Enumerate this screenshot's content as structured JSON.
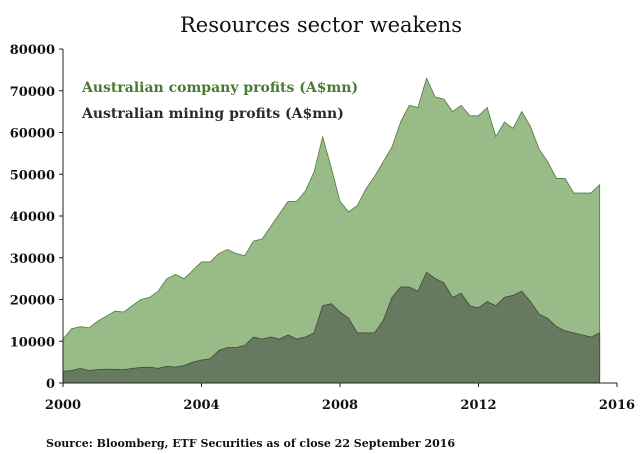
{
  "chart_data": {
    "type": "area",
    "title": "Resources sector weakens",
    "source": "Source: Bloomberg, ETF Securities as of close 22 September 2016",
    "xlabel": "",
    "ylabel": "",
    "xlim": [
      2000,
      2016
    ],
    "ylim": [
      0,
      80000
    ],
    "x_ticks": [
      2000,
      2004,
      2008,
      2012,
      2016
    ],
    "y_ticks": [
      0,
      10000,
      20000,
      30000,
      40000,
      50000,
      60000,
      70000,
      80000
    ],
    "grid": false,
    "legend_placement": "top-left",
    "x": [
      2000.0,
      2000.25,
      2000.5,
      2000.75,
      2001.0,
      2001.25,
      2001.5,
      2001.75,
      2002.0,
      2002.25,
      2002.5,
      2002.75,
      2003.0,
      2003.25,
      2003.5,
      2003.75,
      2004.0,
      2004.25,
      2004.5,
      2004.75,
      2005.0,
      2005.25,
      2005.5,
      2005.75,
      2006.0,
      2006.25,
      2006.5,
      2006.75,
      2007.0,
      2007.25,
      2007.5,
      2007.75,
      2008.0,
      2008.25,
      2008.5,
      2008.75,
      2009.0,
      2009.25,
      2009.5,
      2009.75,
      2010.0,
      2010.25,
      2010.5,
      2010.75,
      2011.0,
      2011.25,
      2011.5,
      2011.75,
      2012.0,
      2012.25,
      2012.5,
      2012.75,
      2013.0,
      2013.25,
      2013.5,
      2013.75,
      2014.0,
      2014.25,
      2014.5,
      2014.75,
      2015.0,
      2015.25,
      2015.5
    ],
    "series": [
      {
        "name": "Australian company profits (A$mn)",
        "color": "#98bb88",
        "text_color": "#4a7a32",
        "values": [
          10500,
          13000,
          13500,
          13200,
          14800,
          16000,
          17200,
          17000,
          18500,
          20000,
          20500,
          22000,
          25000,
          26000,
          25000,
          27000,
          29000,
          29000,
          31000,
          32000,
          31000,
          30500,
          34000,
          34500,
          37500,
          40500,
          43500,
          43500,
          46000,
          50500,
          59000,
          51500,
          43500,
          41000,
          42500,
          46500,
          49500,
          53000,
          56500,
          62500,
          66500,
          66000,
          73000,
          68500,
          68000,
          65000,
          66500,
          64000,
          64000,
          66000,
          59000,
          62500,
          61000,
          65000,
          61500,
          56000,
          53000,
          49000,
          49000,
          45500,
          45500,
          45500,
          47500
        ]
      },
      {
        "name": "Australian mining profits (A$mn)",
        "color": "#677a60",
        "text_color": "#2b2b2b",
        "values": [
          2800,
          3000,
          3500,
          3000,
          3200,
          3300,
          3300,
          3200,
          3500,
          3700,
          3800,
          3500,
          4000,
          3800,
          4200,
          5000,
          5500,
          5800,
          7800,
          8500,
          8500,
          9000,
          11000,
          10500,
          11000,
          10500,
          11500,
          10500,
          11000,
          12000,
          18500,
          19000,
          17000,
          15500,
          12000,
          12000,
          12000,
          15000,
          20500,
          23000,
          23000,
          22000,
          26500,
          25000,
          24000,
          20500,
          21500,
          18500,
          18000,
          19500,
          18500,
          20500,
          21000,
          22000,
          19500,
          16500,
          15500,
          13500,
          12500,
          12000,
          11500,
          11000,
          12000
        ]
      }
    ]
  }
}
